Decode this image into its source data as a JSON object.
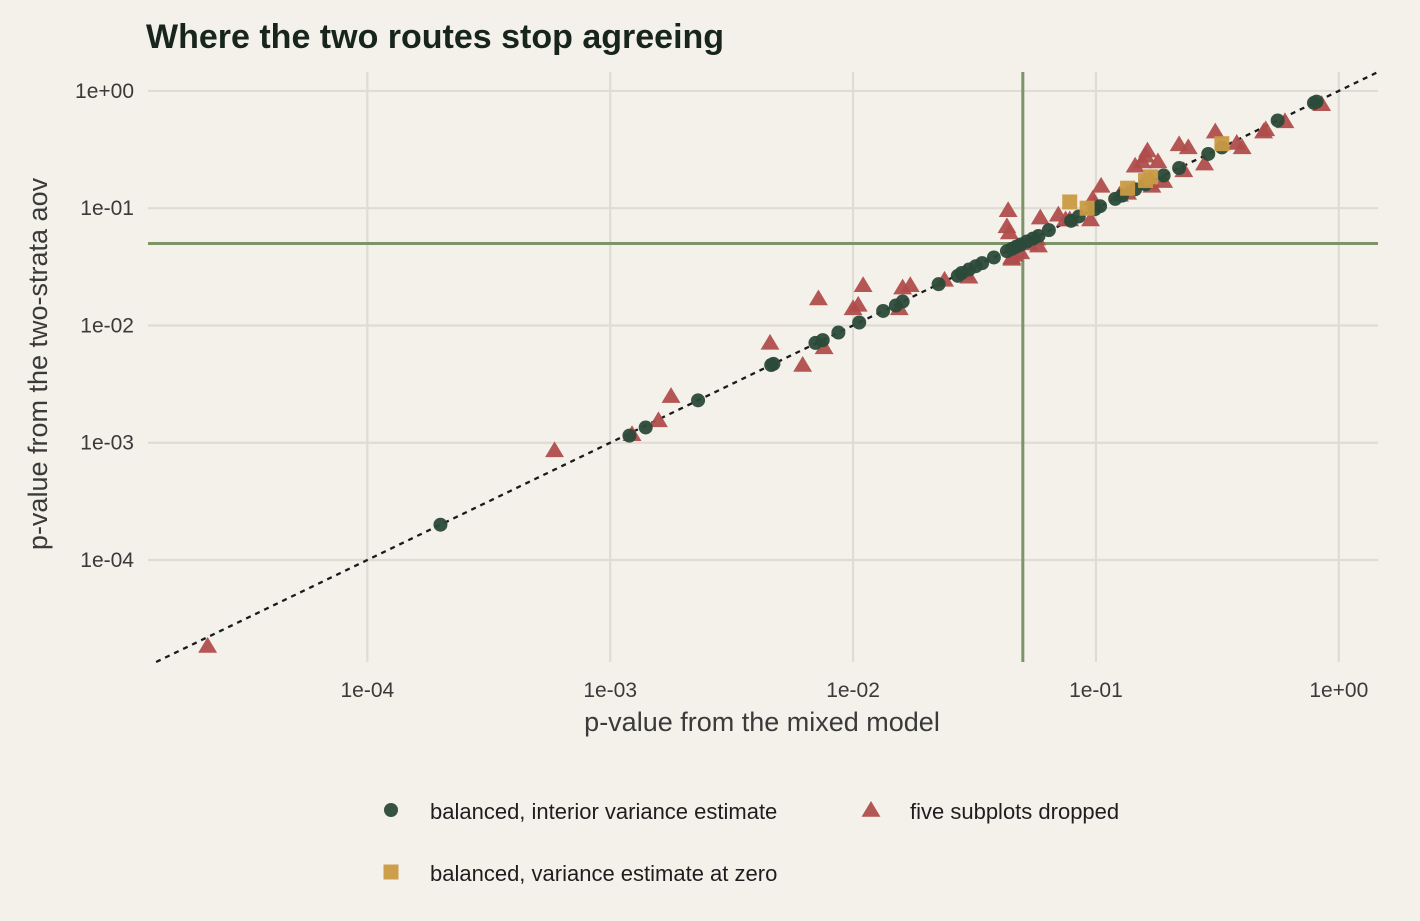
{
  "chart_data": {
    "type": "scatter",
    "title": "Where the two routes stop agreeing",
    "xlabel": "p-value from the mixed model",
    "ylabel": "p-value from the two-strata aov",
    "x_scale": "log10",
    "y_scale": "log10",
    "xlim": [
      1.25e-05,
      1.45
    ],
    "ylim": [
      1.35e-05,
      1.45
    ],
    "x_ticks": [
      {
        "value": 0.0001,
        "label": "1e-04"
      },
      {
        "value": 0.001,
        "label": "1e-03"
      },
      {
        "value": 0.01,
        "label": "1e-02"
      },
      {
        "value": 0.1,
        "label": "1e-01"
      },
      {
        "value": 1,
        "label": "1e+00"
      }
    ],
    "y_ticks": [
      {
        "value": 0.0001,
        "label": "1e-04"
      },
      {
        "value": 0.001,
        "label": "1e-03"
      },
      {
        "value": 0.01,
        "label": "1e-02"
      },
      {
        "value": 0.1,
        "label": "1e-01"
      },
      {
        "value": 1,
        "label": "1e+00"
      }
    ],
    "reference_lines": {
      "x": 0.05,
      "y": 0.05,
      "identity_dotted": true
    },
    "grid": true,
    "legend_position": "bottom",
    "series": [
      {
        "name": "balanced, interior variance estimate",
        "marker": "circle",
        "color": "#2b4a39",
        "x": [
          0.0002,
          0.0012,
          0.0014,
          0.0023,
          0.0046,
          0.0047,
          0.007,
          0.0075,
          0.0087,
          0.0106,
          0.0133,
          0.015,
          0.016,
          0.0225,
          0.027,
          0.028,
          0.03,
          0.032,
          0.034,
          0.038,
          0.043,
          0.045,
          0.047,
          0.049,
          0.052,
          0.055,
          0.058,
          0.064,
          0.079,
          0.085,
          0.099,
          0.104,
          0.12,
          0.128,
          0.145,
          0.16,
          0.19,
          0.22,
          0.29,
          0.33,
          0.56,
          0.79,
          0.81
        ],
        "y": [
          0.0002,
          0.00115,
          0.00135,
          0.0023,
          0.0046,
          0.0047,
          0.0071,
          0.0075,
          0.0087,
          0.0106,
          0.0133,
          0.0148,
          0.016,
          0.0225,
          0.0265,
          0.028,
          0.03,
          0.032,
          0.034,
          0.038,
          0.043,
          0.045,
          0.047,
          0.049,
          0.052,
          0.055,
          0.058,
          0.065,
          0.078,
          0.085,
          0.098,
          0.104,
          0.12,
          0.128,
          0.145,
          0.16,
          0.19,
          0.22,
          0.29,
          0.33,
          0.56,
          0.79,
          0.81
        ]
      },
      {
        "name": "five subplots dropped",
        "marker": "triangle",
        "color": "#b04d4c",
        "x": [
          2.2e-05,
          0.00059,
          0.00123,
          0.00158,
          0.00178,
          0.00455,
          0.0062,
          0.0072,
          0.0076,
          0.01,
          0.0105,
          0.011,
          0.0155,
          0.016,
          0.0172,
          0.0238,
          0.029,
          0.03,
          0.043,
          0.044,
          0.0435,
          0.045,
          0.045,
          0.046,
          0.049,
          0.053,
          0.057,
          0.058,
          0.059,
          0.07,
          0.075,
          0.078,
          0.095,
          0.097,
          0.099,
          0.105,
          0.125,
          0.135,
          0.145,
          0.155,
          0.16,
          0.163,
          0.165,
          0.168,
          0.17,
          0.18,
          0.19,
          0.22,
          0.23,
          0.24,
          0.28,
          0.31,
          0.38,
          0.4,
          0.49,
          0.5,
          0.6,
          0.85
        ],
        "y": [
          1.85e-05,
          0.00086,
          0.00118,
          0.00155,
          0.0025,
          0.0071,
          0.0046,
          0.017,
          0.0065,
          0.014,
          0.015,
          0.022,
          0.014,
          0.021,
          0.022,
          0.0245,
          0.028,
          0.026,
          0.07,
          0.062,
          0.096,
          0.038,
          0.037,
          0.04,
          0.042,
          0.05,
          0.055,
          0.048,
          0.083,
          0.088,
          0.08,
          0.08,
          0.08,
          0.12,
          0.11,
          0.155,
          0.13,
          0.135,
          0.23,
          0.25,
          0.28,
          0.31,
          0.165,
          0.175,
          0.155,
          0.25,
          0.17,
          0.35,
          0.21,
          0.33,
          0.24,
          0.45,
          0.36,
          0.33,
          0.45,
          0.47,
          0.55,
          0.77
        ]
      },
      {
        "name": "balanced, variance estimate at zero",
        "marker": "square",
        "color": "#c99a44",
        "x": [
          0.078,
          0.092,
          0.135,
          0.16,
          0.168,
          0.33
        ],
        "y": [
          0.113,
          0.1,
          0.148,
          0.172,
          0.185,
          0.355
        ]
      }
    ]
  }
}
